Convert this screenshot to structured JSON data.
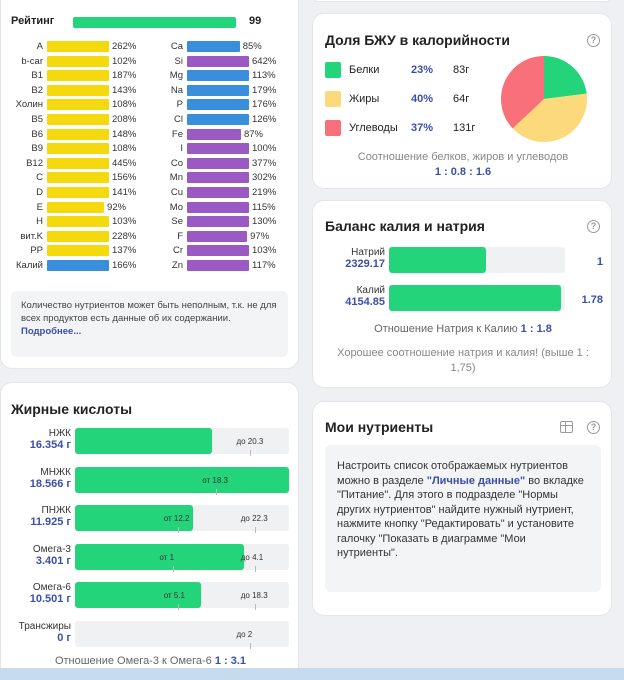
{
  "vitamins_card": {
    "rating_label": "Рейтинг",
    "rating_value": "99",
    "rating_percent": 99,
    "left_column": [
      {
        "name": "A",
        "pct": "262%",
        "color": "#f5d90f"
      },
      {
        "name": "b-car",
        "pct": "102%",
        "color": "#f5d90f"
      },
      {
        "name": "B1",
        "pct": "187%",
        "color": "#f5d90f"
      },
      {
        "name": "B2",
        "pct": "143%",
        "color": "#f5d90f"
      },
      {
        "name": "Холин",
        "pct": "108%",
        "color": "#f5d90f"
      },
      {
        "name": "B5",
        "pct": "208%",
        "color": "#f5d90f"
      },
      {
        "name": "B6",
        "pct": "148%",
        "color": "#f5d90f"
      },
      {
        "name": "B9",
        "pct": "108%",
        "color": "#f5d90f"
      },
      {
        "name": "B12",
        "pct": "445%",
        "color": "#f5d90f"
      },
      {
        "name": "C",
        "pct": "156%",
        "color": "#f5d90f"
      },
      {
        "name": "D",
        "pct": "141%",
        "color": "#f5d90f"
      },
      {
        "name": "E",
        "pct": "92%",
        "color": "#f5d90f"
      },
      {
        "name": "H",
        "pct": "103%",
        "color": "#f5d90f"
      },
      {
        "name": "вит.K",
        "pct": "228%",
        "color": "#f5d90f"
      },
      {
        "name": "PP",
        "pct": "137%",
        "color": "#f5d90f"
      },
      {
        "name": "Калий",
        "pct": "166%",
        "color": "#3a8fdc"
      }
    ],
    "right_column": [
      {
        "name": "Ca",
        "pct": "85%",
        "color": "#3a8fdc"
      },
      {
        "name": "Si",
        "pct": "642%",
        "color": "#9b59c4"
      },
      {
        "name": "Mg",
        "pct": "113%",
        "color": "#3a8fdc"
      },
      {
        "name": "Na",
        "pct": "179%",
        "color": "#3a8fdc"
      },
      {
        "name": "P",
        "pct": "176%",
        "color": "#3a8fdc"
      },
      {
        "name": "Cl",
        "pct": "126%",
        "color": "#3a8fdc"
      },
      {
        "name": "Fe",
        "pct": "87%",
        "color": "#9b59c4"
      },
      {
        "name": "I",
        "pct": "100%",
        "color": "#9b59c4"
      },
      {
        "name": "Co",
        "pct": "377%",
        "color": "#9b59c4"
      },
      {
        "name": "Mn",
        "pct": "302%",
        "color": "#9b59c4"
      },
      {
        "name": "Cu",
        "pct": "219%",
        "color": "#9b59c4"
      },
      {
        "name": "Mo",
        "pct": "115%",
        "color": "#9b59c4"
      },
      {
        "name": "Se",
        "pct": "130%",
        "color": "#9b59c4"
      },
      {
        "name": "F",
        "pct": "97%",
        "color": "#9b59c4"
      },
      {
        "name": "Cr",
        "pct": "103%",
        "color": "#9b59c4"
      },
      {
        "name": "Zn",
        "pct": "117%",
        "color": "#9b59c4"
      }
    ],
    "note_text": "Количество нутриентов может быть неполным, т.к. не для всех продуктов есть данные об их содержании.",
    "note_link": "Подробнее..."
  },
  "fatty_card": {
    "title": "Жирные кислоты",
    "rows": [
      {
        "name": "НЖК",
        "value": "16.354 г",
        "fill": 0.64,
        "markers": [
          {
            "label": "до 20.3",
            "pos": 0.82
          }
        ]
      },
      {
        "name": "МНЖК",
        "value": "18.566 г",
        "fill": 1.0,
        "markers": [
          {
            "label": "от 18.3",
            "pos": 0.66
          }
        ]
      },
      {
        "name": "ПНЖК",
        "value": "11.925 г",
        "fill": 0.55,
        "markers": [
          {
            "label": "от 12.2",
            "pos": 0.48
          },
          {
            "label": "до 22.3",
            "pos": 0.84
          }
        ]
      },
      {
        "name": "Омега-3",
        "value": "3.401 г",
        "fill": 0.79,
        "markers": [
          {
            "label": "от 1",
            "pos": 0.46
          },
          {
            "label": "до 4.1",
            "pos": 0.84
          }
        ]
      },
      {
        "name": "Омега-6",
        "value": "10.501 г",
        "fill": 0.59,
        "markers": [
          {
            "label": "от 5.1",
            "pos": 0.48
          },
          {
            "label": "до 18.3",
            "pos": 0.84
          }
        ]
      },
      {
        "name": "Трансжиры",
        "value": "0 г",
        "fill": 0.0,
        "markers": [
          {
            "label": "до 2",
            "pos": 0.82
          }
        ]
      }
    ],
    "ratio_label": "Отношение Омега-3 к Омега-6",
    "ratio_value": "1 : 3.1"
  },
  "bju_card": {
    "title": "Доля БЖУ в калорийности",
    "items": [
      {
        "name": "Белки",
        "pct": "23%",
        "grams": "83г",
        "color": "#23d47b",
        "share": 23
      },
      {
        "name": "Жиры",
        "pct": "40%",
        "grams": "64г",
        "color": "#fcd97a",
        "share": 40
      },
      {
        "name": "Углеводы",
        "pct": "37%",
        "grams": "131г",
        "color": "#f7707a",
        "share": 37
      }
    ],
    "caption": "Соотношение белков, жиров и углеводов",
    "ratio": "1 : 0.8 : 1.6"
  },
  "kna_card": {
    "title": "Баланс калия и натрия",
    "rows": [
      {
        "name": "Натрий",
        "value": "2329.17",
        "num": "1",
        "fill": 0.55
      },
      {
        "name": "Калий",
        "value": "4154.85",
        "num": "1.78",
        "fill": 0.98
      }
    ],
    "ratio_label": "Отношение Натрия к Калию",
    "ratio_value": "1 : 1.8",
    "note": "Хорошее соотношение натрия и калия! (выше 1 : 1,75)"
  },
  "my_card": {
    "title": "Мои нутриенты",
    "text_1": "Настроить список отображаемых нутриентов можно в разделе ",
    "link_1": "\"Личные данные\"",
    "text_2": " во вкладке \"Питание\". Для этого в подразделе \"Нормы других нутриентов\" найдите нужный нутриент, нажмите кнопку \"Редактировать\" и установите галочку \"Показать в диаграмме \"Мои нутриенты\"."
  },
  "help_icon_glyph": "?"
}
